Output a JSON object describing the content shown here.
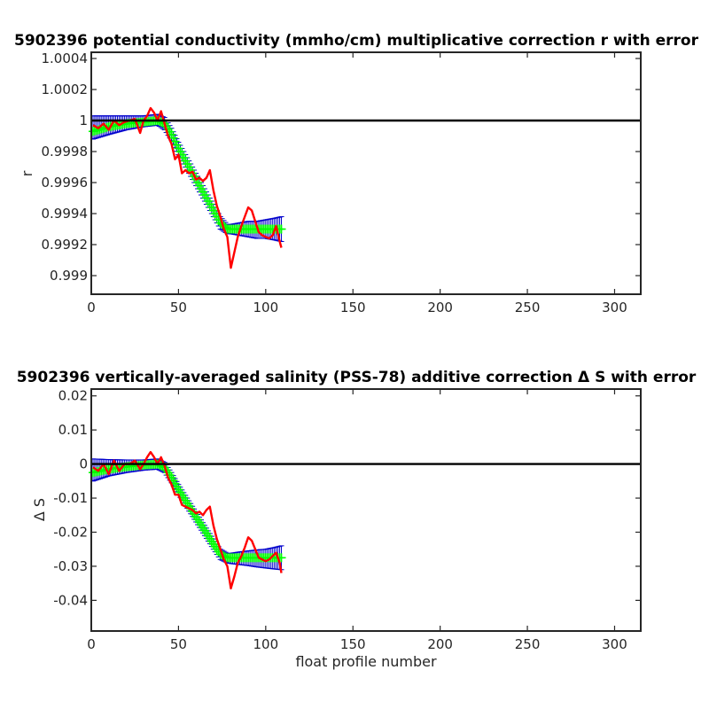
{
  "chart_data": [
    {
      "type": "line",
      "title": "5902396 potential conductivity (mmho/cm) multiplicative correction r with error",
      "xlabel": "",
      "ylabel": "r",
      "xlim": [
        0,
        315
      ],
      "ylim": [
        0.99888,
        1.00044
      ],
      "xticks": [
        0,
        50,
        100,
        150,
        200,
        250,
        300
      ],
      "xtick_labels": [
        "0",
        "50",
        "100",
        "150",
        "200",
        "250",
        "300"
      ],
      "yticks": [
        0.999,
        0.9992,
        0.9994,
        0.9996,
        0.9998,
        1.0,
        1.0002,
        1.0004
      ],
      "ytick_labels": [
        "0.999",
        "0.9992",
        "0.9994",
        "0.9996",
        "0.9998",
        "1",
        "1.0002",
        "1.0004"
      ],
      "reference_line": {
        "y": 1.0,
        "color": "#000000"
      },
      "series": [
        {
          "role": "fitted-correction",
          "color": "#00ff00",
          "x": [
            1,
            10,
            20,
            30,
            38,
            42,
            46,
            50,
            55,
            60,
            65,
            70,
            74,
            78,
            80,
            85,
            90,
            95,
            100,
            105,
            109
          ],
          "y": [
            0.99993,
            0.99996,
            0.99998,
            0.99999,
            1.0,
            0.99998,
            0.99991,
            0.99982,
            0.99972,
            0.99962,
            0.99952,
            0.99942,
            0.99934,
            0.9993,
            0.9993,
            0.9993,
            0.9993,
            0.9993,
            0.9993,
            0.9993,
            0.9993
          ]
        },
        {
          "role": "error-upper",
          "color": "#0000cc",
          "x": [
            1,
            10,
            20,
            30,
            38,
            42,
            46,
            50,
            55,
            60,
            65,
            70,
            74,
            78,
            80,
            85,
            90,
            95,
            100,
            105,
            109
          ],
          "y": [
            1.00003,
            1.00003,
            1.00003,
            1.00003,
            1.00004,
            1.00002,
            0.99995,
            0.99986,
            0.99976,
            0.99966,
            0.99956,
            0.99946,
            0.99938,
            0.99933,
            0.99933,
            0.99934,
            0.99935,
            0.99935,
            0.99936,
            0.99937,
            0.99938
          ]
        },
        {
          "role": "error-lower",
          "color": "#0000cc",
          "x": [
            1,
            10,
            20,
            30,
            38,
            42,
            46,
            50,
            55,
            60,
            65,
            70,
            74,
            78,
            80,
            85,
            90,
            95,
            100,
            105,
            109
          ],
          "y": [
            0.99988,
            0.99991,
            0.99994,
            0.99996,
            0.99997,
            0.99994,
            0.99987,
            0.99978,
            0.99968,
            0.99958,
            0.99948,
            0.99938,
            0.9993,
            0.99927,
            0.99927,
            0.99926,
            0.99925,
            0.99924,
            0.99924,
            0.99923,
            0.99922
          ]
        },
        {
          "role": "profile-estimate",
          "color": "#ff0000",
          "x": [
            1,
            4,
            7,
            10,
            13,
            16,
            19,
            22,
            25,
            28,
            30,
            32,
            34,
            36,
            38,
            40,
            42,
            44,
            46,
            48,
            50,
            52,
            54,
            56,
            58,
            60,
            62,
            64,
            66,
            68,
            70,
            72,
            74,
            76,
            78,
            80,
            82,
            84,
            86,
            88,
            90,
            92,
            94,
            96,
            98,
            100,
            102,
            104,
            106,
            108,
            109
          ],
          "y": [
            0.99997,
            0.99995,
            0.99998,
            0.99994,
            1.0,
            0.99997,
            0.99999,
            1.0,
            1.00001,
            0.99992,
            1.0,
            1.00003,
            1.00008,
            1.00005,
            1.0,
            1.00006,
            0.99998,
            0.9999,
            0.99985,
            0.99975,
            0.99978,
            0.99966,
            0.99968,
            0.99966,
            0.99967,
            0.99962,
            0.99963,
            0.99961,
            0.99963,
            0.99968,
            0.99955,
            0.99945,
            0.99938,
            0.9993,
            0.99925,
            0.99905,
            0.99915,
            0.99925,
            0.99932,
            0.99938,
            0.99944,
            0.99942,
            0.99935,
            0.99928,
            0.99926,
            0.99925,
            0.99924,
            0.99926,
            0.99932,
            0.99922,
            0.99918
          ]
        }
      ]
    },
    {
      "type": "line",
      "title": "5902396 vertically-averaged salinity (PSS-78) additive correction Δ S with error",
      "xlabel": "float profile number",
      "ylabel": "Δ S",
      "xlim": [
        0,
        315
      ],
      "ylim": [
        -0.049,
        0.022
      ],
      "xticks": [
        0,
        50,
        100,
        150,
        200,
        250,
        300
      ],
      "xtick_labels": [
        "0",
        "50",
        "100",
        "150",
        "200",
        "250",
        "300"
      ],
      "yticks": [
        -0.04,
        -0.03,
        -0.02,
        -0.01,
        0,
        0.01,
        0.02
      ],
      "ytick_labels": [
        "-0.04",
        "-0.03",
        "-0.02",
        "-0.01",
        "0",
        "0.01",
        "0.02"
      ],
      "reference_line": {
        "y": 0,
        "color": "#000000"
      },
      "series": [
        {
          "role": "fitted-correction",
          "color": "#00ff00",
          "x": [
            1,
            10,
            20,
            30,
            38,
            42,
            46,
            50,
            55,
            60,
            65,
            70,
            74,
            78,
            80,
            85,
            90,
            95,
            100,
            105,
            109
          ],
          "y": [
            -0.0025,
            -0.0015,
            -0.0008,
            -0.0003,
            0.0,
            -0.001,
            -0.004,
            -0.0075,
            -0.0115,
            -0.0155,
            -0.0195,
            -0.0235,
            -0.0265,
            -0.0275,
            -0.0275,
            -0.0275,
            -0.0275,
            -0.0275,
            -0.0275,
            -0.0275,
            -0.0275
          ]
        },
        {
          "role": "error-upper",
          "color": "#0000cc",
          "x": [
            1,
            10,
            20,
            30,
            38,
            42,
            46,
            50,
            55,
            60,
            65,
            70,
            74,
            78,
            80,
            85,
            90,
            95,
            100,
            105,
            109
          ],
          "y": [
            0.0015,
            0.0013,
            0.0012,
            0.0012,
            0.0015,
            0.0005,
            -0.0025,
            -0.006,
            -0.01,
            -0.014,
            -0.018,
            -0.022,
            -0.025,
            -0.0262,
            -0.0262,
            -0.0258,
            -0.0255,
            -0.0252,
            -0.025,
            -0.0245,
            -0.024
          ]
        },
        {
          "role": "error-lower",
          "color": "#0000cc",
          "x": [
            1,
            10,
            20,
            30,
            38,
            42,
            46,
            50,
            55,
            60,
            65,
            70,
            74,
            78,
            80,
            85,
            90,
            95,
            100,
            105,
            109
          ],
          "y": [
            -0.005,
            -0.0035,
            -0.0025,
            -0.0018,
            -0.0015,
            -0.0025,
            -0.0055,
            -0.009,
            -0.013,
            -0.017,
            -0.021,
            -0.025,
            -0.028,
            -0.029,
            -0.0292,
            -0.0295,
            -0.0298,
            -0.0302,
            -0.0305,
            -0.0308,
            -0.031
          ]
        },
        {
          "role": "profile-estimate",
          "color": "#ff0000",
          "x": [
            1,
            4,
            7,
            10,
            13,
            16,
            19,
            22,
            25,
            28,
            30,
            32,
            34,
            36,
            38,
            40,
            42,
            44,
            46,
            48,
            50,
            52,
            54,
            56,
            58,
            60,
            62,
            64,
            66,
            68,
            70,
            72,
            74,
            76,
            78,
            80,
            82,
            84,
            86,
            88,
            90,
            92,
            94,
            96,
            98,
            100,
            102,
            104,
            106,
            108,
            109
          ],
          "y": [
            -0.001,
            -0.002,
            0.0,
            -0.003,
            0.001,
            -0.002,
            0.0,
            0.0,
            0.001,
            -0.0015,
            0.0,
            0.002,
            0.0035,
            0.002,
            0.0,
            0.002,
            -0.0005,
            -0.004,
            -0.006,
            -0.009,
            -0.009,
            -0.012,
            -0.0125,
            -0.013,
            -0.0135,
            -0.0145,
            -0.014,
            -0.015,
            -0.0135,
            -0.0125,
            -0.018,
            -0.022,
            -0.025,
            -0.028,
            -0.03,
            -0.0365,
            -0.033,
            -0.029,
            -0.027,
            -0.0245,
            -0.0215,
            -0.0225,
            -0.025,
            -0.0275,
            -0.028,
            -0.0285,
            -0.028,
            -0.027,
            -0.026,
            -0.029,
            -0.032
          ]
        }
      ]
    }
  ]
}
